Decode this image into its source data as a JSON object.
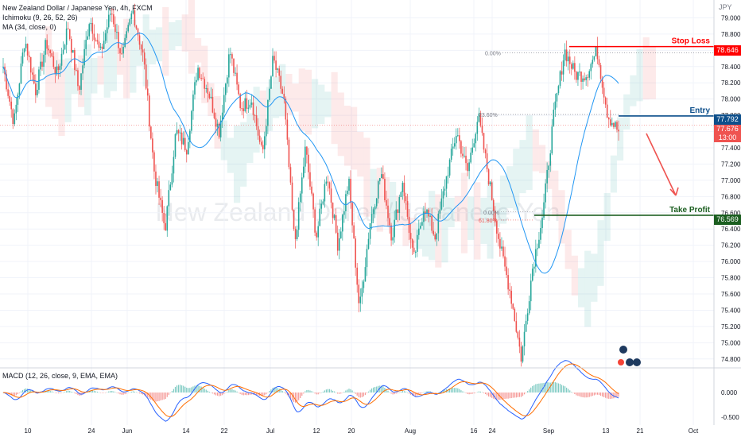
{
  "legends": {
    "main": "New Zealand Dollar / Japanese Yen, 4h, FXCM",
    "ichimoku": "Ichimoku (9, 26, 52, 26)",
    "ma": "MA (34, close, 0)",
    "macd": "MACD (12, 26, close, 9, EMA, EMA)"
  },
  "currency": "JPY",
  "watermark": "New Zealand Dollar / Japanese Yen",
  "colors": {
    "up": "#26a69a",
    "down": "#ef5350",
    "ma": "#2196f3",
    "stop": "#ff0000",
    "entry": "#0d4f8b",
    "take": "#1b5e20",
    "price_tag": "#ef5350",
    "fib": "#787b86"
  },
  "chart_data": {
    "type": "candlestick",
    "title": "New Zealand Dollar / Japanese Yen, 4h, FXCM",
    "ylim": [
      74.7,
      79.2
    ],
    "price_ticks": [
      74.8,
      75.0,
      75.2,
      75.4,
      75.6,
      75.8,
      76.0,
      76.2,
      76.4,
      76.6,
      76.8,
      77.0,
      77.2,
      77.4,
      77.6,
      77.8,
      78.0,
      78.2,
      78.4,
      78.6,
      78.8,
      79.0
    ],
    "x_labels": [
      "10",
      "24",
      "Jun",
      "14",
      "22",
      "Jul",
      "12",
      "20",
      "Aug",
      "16",
      "24",
      "Sep",
      "13",
      "21",
      "Oct"
    ],
    "close_path": [
      78.4,
      77.7,
      78.75,
      78.1,
      78.7,
      78.3,
      78.9,
      78.1,
      79.0,
      78.55,
      79.1,
      78.5,
      79.1,
      78.5,
      77.1,
      76.4,
      77.6,
      77.4,
      78.4,
      78.1,
      77.6,
      78.6,
      77.9,
      78.0,
      77.3,
      78.5,
      78.0,
      76.2,
      77.4,
      76.3,
      77.1,
      76.2,
      77.0,
      75.4,
      76.5,
      77.1,
      76.3,
      77.0,
      76.0,
      76.7,
      76.3,
      77.0,
      77.6,
      77.1,
      77.8,
      77.0,
      76.2,
      75.6,
      74.8,
      75.9,
      76.6,
      77.8,
      78.6,
      78.3,
      78.3,
      78.6,
      77.8,
      77.6
    ],
    "levels": [
      {
        "name": "Stop Loss",
        "value": 78.646
      },
      {
        "name": "Entry",
        "value": 77.792
      },
      {
        "name": "Take Profit",
        "value": 76.569
      }
    ],
    "current_price": "77.676",
    "countdown": "13:00",
    "fib_levels": [
      "0.00%",
      "23.60%",
      "0.00%",
      "61.80%"
    ],
    "macd_ticks": [
      "0.000",
      "-0.500"
    ]
  }
}
